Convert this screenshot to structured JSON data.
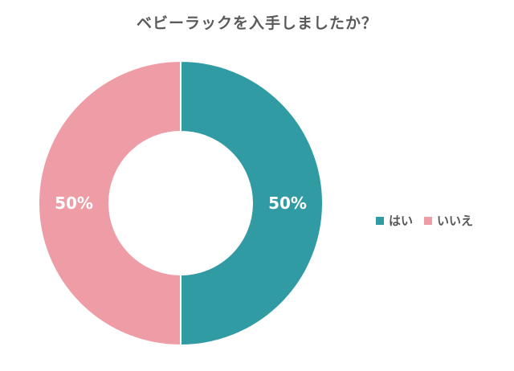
{
  "chart_data": {
    "type": "pie",
    "variant": "donut",
    "title": "ベビーラックを入手しましたか？",
    "categories": [
      "はい",
      "いいえ"
    ],
    "values": [
      50,
      50
    ],
    "labels": [
      "50%",
      "50%"
    ],
    "colors": [
      "#319ba3",
      "#ee9ca5"
    ],
    "legend_position": "right"
  }
}
